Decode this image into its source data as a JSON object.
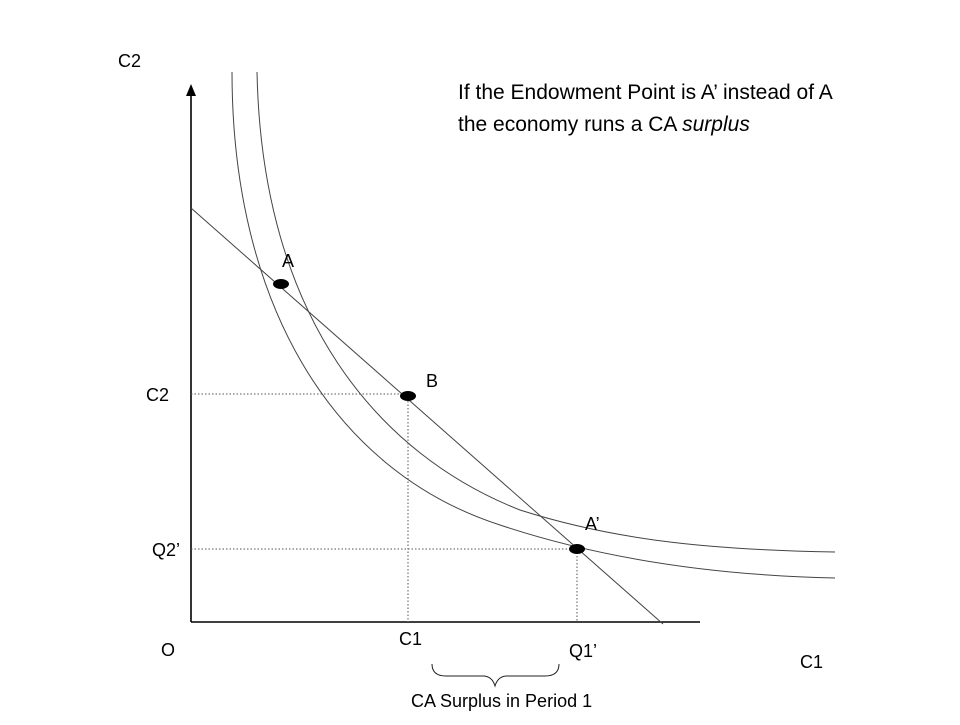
{
  "diagram": {
    "axes": {
      "x_label": "C1",
      "y_label": "C2",
      "origin_label": "O"
    },
    "title": {
      "line1": "If the Endowment Point is A’ instead of A",
      "line2_prefix": "the economy runs a CA ",
      "line2_emphasis": "surplus"
    },
    "points": {
      "a": "A",
      "b": "B",
      "a_prime": "A’"
    },
    "tick_labels": {
      "y_c2": "C2",
      "y_q2_prime": "Q2’",
      "x_c1": "C1",
      "x_q1_prime": "Q1’"
    },
    "brace_label": "CA Surplus in Period 1",
    "colors": {
      "line": "#4a4a4a",
      "axis": "#000000",
      "point": "#000000",
      "guide": "#555555"
    }
  }
}
